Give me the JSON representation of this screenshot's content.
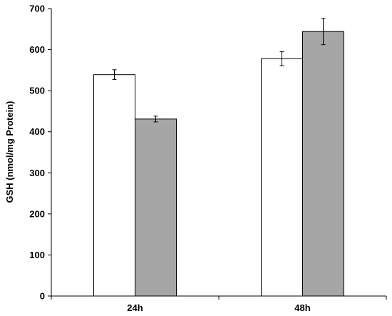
{
  "chart_data": {
    "type": "bar",
    "title": "",
    "xlabel": "",
    "ylabel": "GSH (nmol/mg Protein)",
    "ylim": [
      0,
      700
    ],
    "yticks": [
      0,
      100,
      200,
      300,
      400,
      500,
      600,
      700
    ],
    "categories": [
      "24h",
      "48h"
    ],
    "grid": false,
    "legend": "none",
    "series": [
      {
        "values": [
          539,
          578
        ],
        "errors": [
          12,
          17
        ],
        "color": "#ffffff"
      },
      {
        "values": [
          431,
          644
        ],
        "errors": [
          7,
          32
        ],
        "color": "#a6a6a6"
      }
    ]
  }
}
